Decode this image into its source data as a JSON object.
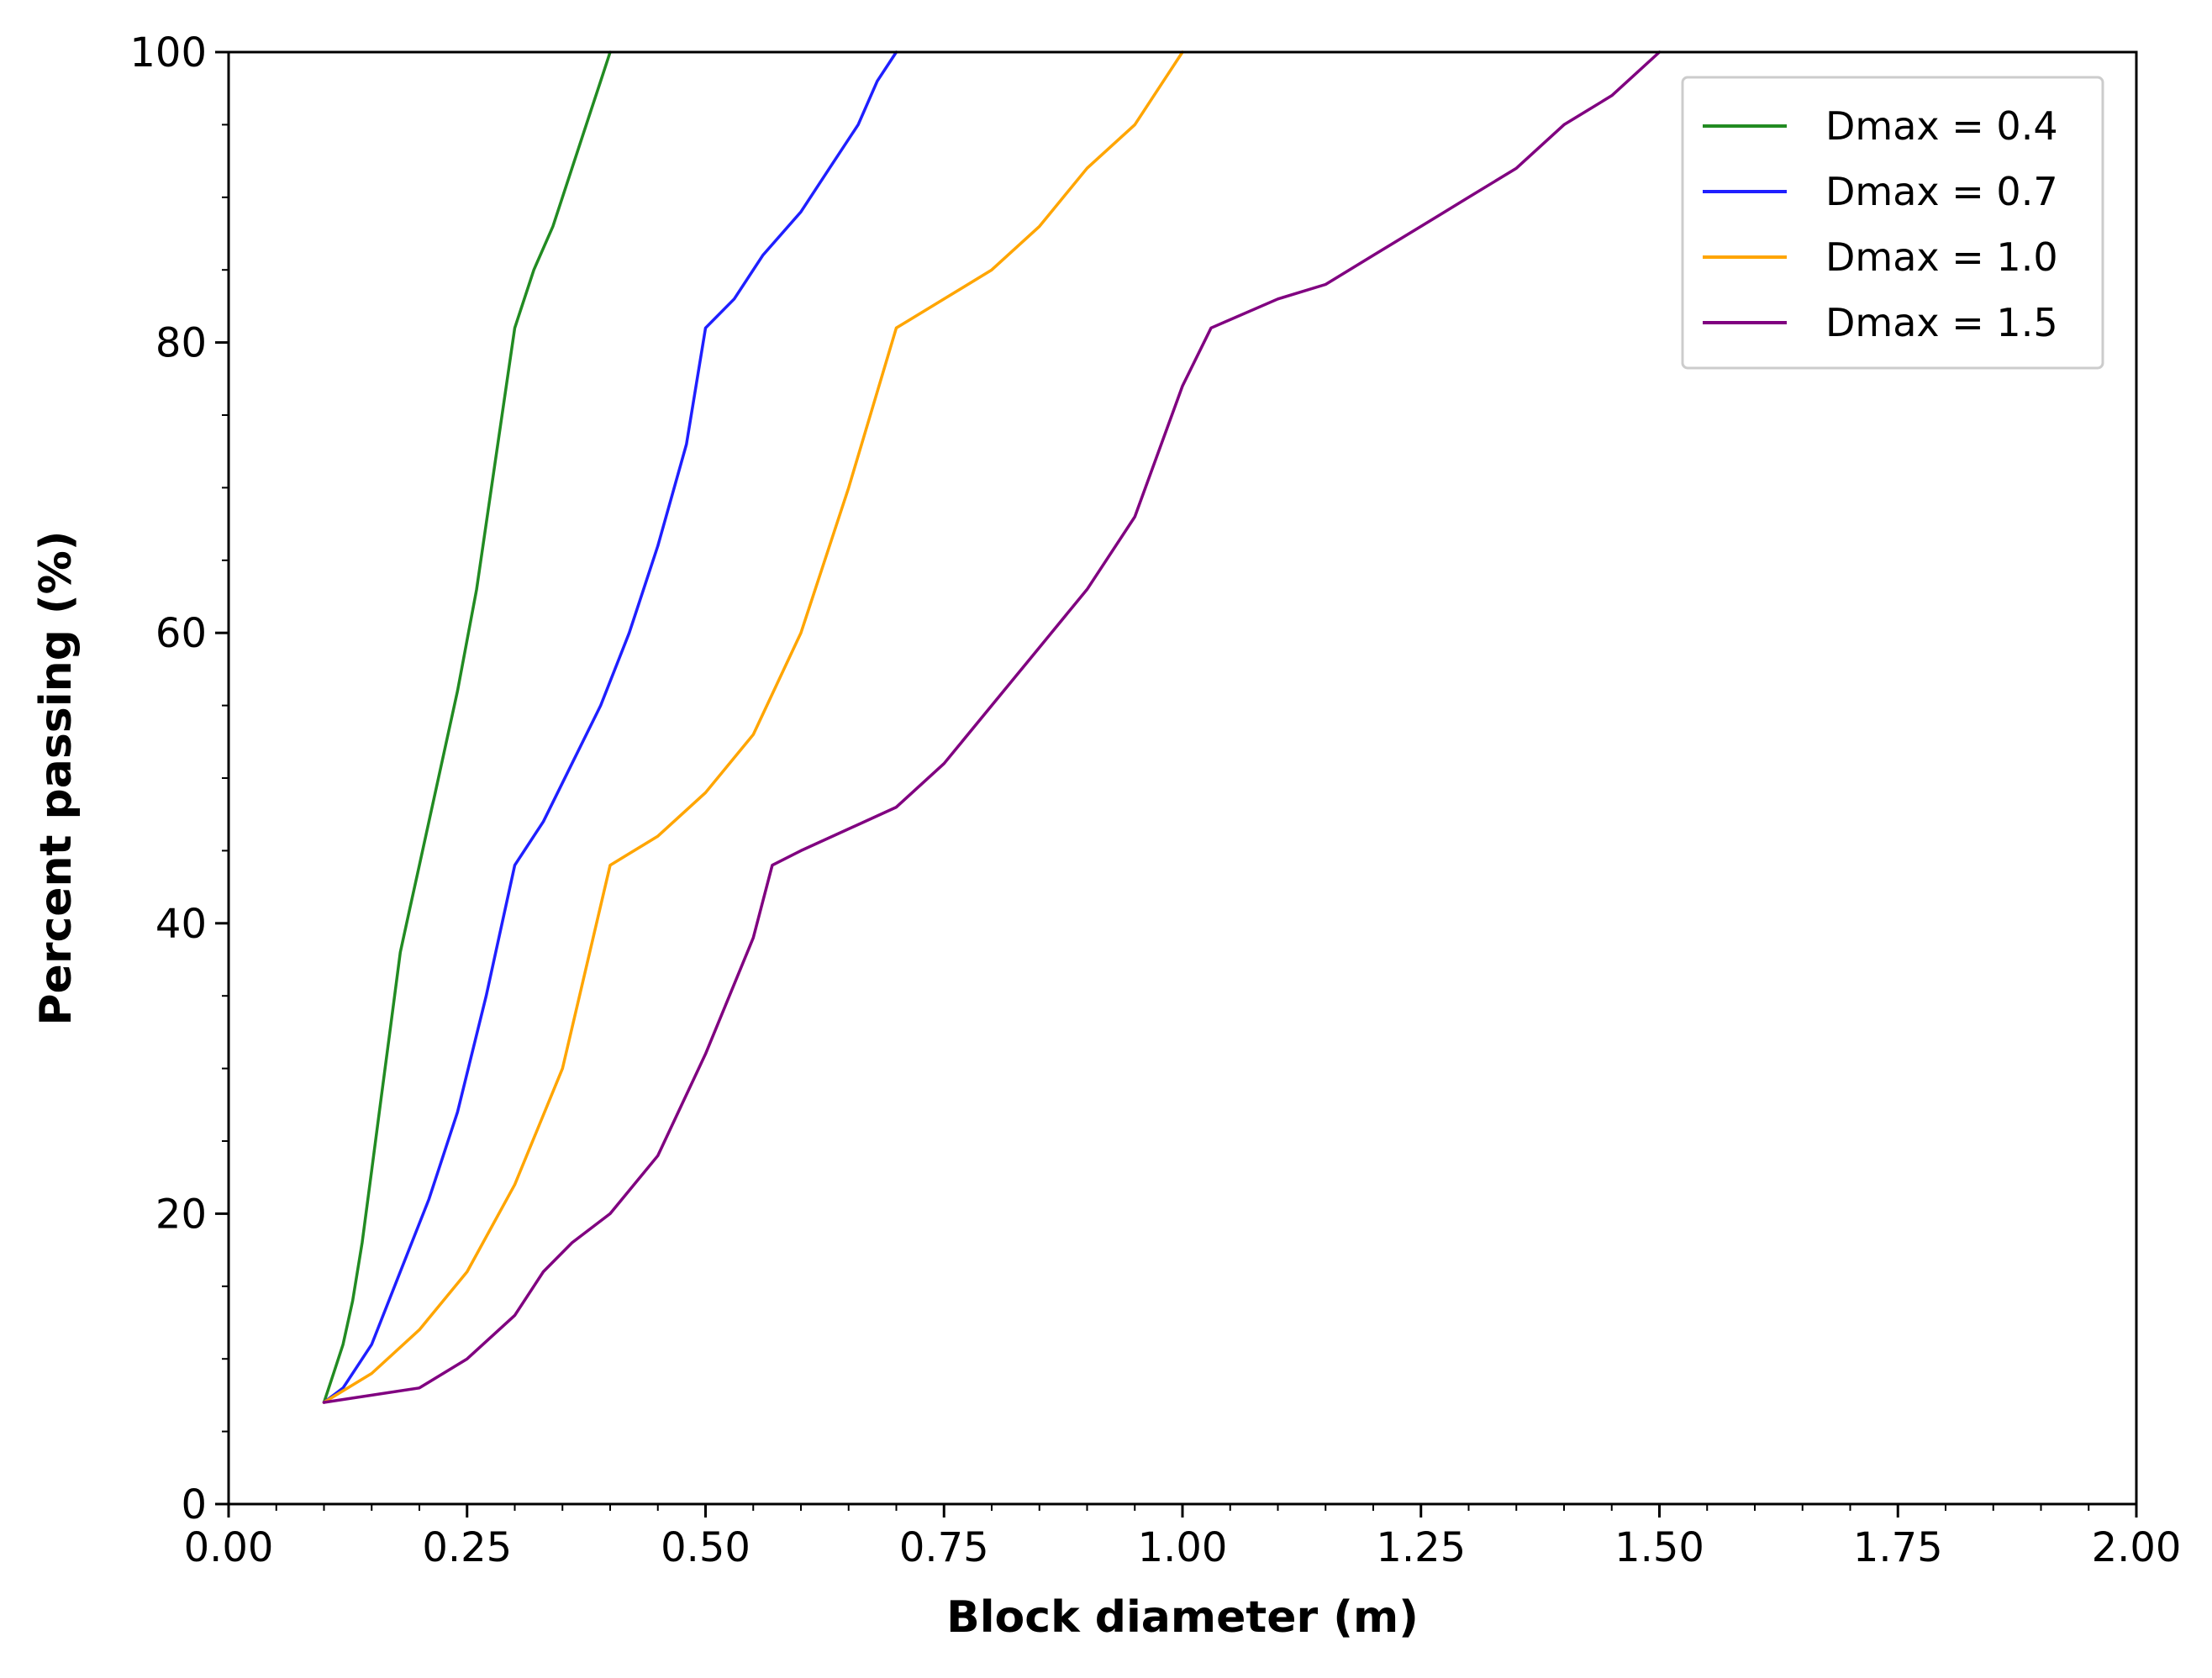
{
  "chart_data": {
    "type": "line",
    "title": "",
    "xlabel": "Block diameter (m)",
    "ylabel": "Percent passing (%)",
    "xlim": [
      0,
      2
    ],
    "ylim": [
      0,
      100
    ],
    "x_ticks": [
      "0.00",
      "0.25",
      "0.50",
      "0.75",
      "1.00",
      "1.25",
      "1.50",
      "1.75",
      "2.00"
    ],
    "x_tick_values": [
      0,
      0.25,
      0.5,
      0.75,
      1.0,
      1.25,
      1.5,
      1.75,
      2.0
    ],
    "y_ticks": [
      "0",
      "20",
      "40",
      "60",
      "80",
      "100"
    ],
    "y_tick_values": [
      0,
      20,
      40,
      60,
      80,
      100
    ],
    "x_minor_step": 0.05,
    "y_minor_step": 5,
    "grid": false,
    "legend_position": "top-right",
    "series": [
      {
        "name": "Dmax = 0.4",
        "color": "#228B22",
        "x": [
          0.1,
          0.11,
          0.12,
          0.13,
          0.14,
          0.15,
          0.16,
          0.17,
          0.18,
          0.19,
          0.2,
          0.22,
          0.24,
          0.26,
          0.28,
          0.3,
          0.32,
          0.34,
          0.36,
          0.38,
          0.39,
          0.4
        ],
        "y": [
          7,
          9,
          11,
          14,
          18,
          23,
          28,
          33,
          38,
          41,
          44,
          50,
          56,
          63,
          72,
          81,
          85,
          88,
          92,
          96,
          98,
          100
        ]
      },
      {
        "name": "Dmax = 0.7",
        "color": "#1F1FFF",
        "x": [
          0.1,
          0.12,
          0.15,
          0.18,
          0.21,
          0.24,
          0.27,
          0.3,
          0.33,
          0.36,
          0.39,
          0.42,
          0.45,
          0.48,
          0.5,
          0.53,
          0.56,
          0.6,
          0.63,
          0.66,
          0.68,
          0.7
        ],
        "y": [
          7,
          8,
          11,
          16,
          21,
          27,
          35,
          44,
          47,
          51,
          55,
          60,
          66,
          73,
          81,
          83,
          86,
          89,
          92,
          95,
          98,
          100
        ]
      },
      {
        "name": "Dmax = 1.0",
        "color": "#FFA500",
        "x": [
          0.1,
          0.15,
          0.2,
          0.25,
          0.3,
          0.35,
          0.4,
          0.45,
          0.5,
          0.55,
          0.6,
          0.65,
          0.7,
          0.75,
          0.8,
          0.85,
          0.9,
          0.95,
          0.98,
          1.0
        ],
        "y": [
          7,
          9,
          12,
          16,
          22,
          30,
          44,
          46,
          49,
          53,
          60,
          70,
          81,
          83,
          85,
          88,
          92,
          95,
          98,
          100
        ]
      },
      {
        "name": "Dmax = 1.5",
        "color": "#800080",
        "x": [
          0.1,
          0.2,
          0.25,
          0.3,
          0.33,
          0.36,
          0.4,
          0.45,
          0.5,
          0.55,
          0.57,
          0.6,
          0.7,
          0.75,
          0.8,
          0.85,
          0.9,
          0.95,
          1.0,
          1.03,
          1.1,
          1.15,
          1.2,
          1.25,
          1.3,
          1.35,
          1.4,
          1.45,
          1.5
        ],
        "y": [
          7,
          8,
          10,
          13,
          16,
          18,
          20,
          24,
          31,
          39,
          44,
          45,
          48,
          51,
          55,
          59,
          63,
          68,
          77,
          81,
          83,
          84,
          86,
          88,
          90,
          92,
          95,
          97,
          100
        ]
      }
    ]
  }
}
